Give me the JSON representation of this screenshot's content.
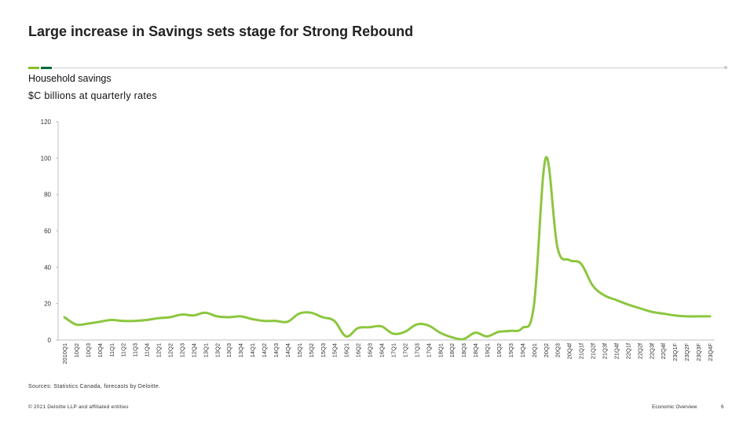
{
  "slide": {
    "title": "Large increase in Savings sets stage for Strong Rebound",
    "subtitle": "Household savings",
    "units": "$C billions at quarterly rates",
    "sources": "Sources: Statistics Canada, forecasts by Deloitte.",
    "copyright": "© 2021 Deloitte LLP and affiliated entities",
    "footer_right": "Economic Overview",
    "page_number": "6"
  },
  "colors": {
    "line": "#8cc63f",
    "accent_green": "#86bc25",
    "accent_dark_green": "#046a38",
    "axis": "#bfbfbf"
  },
  "chart_data": {
    "type": "line",
    "title": "Household savings",
    "ylabel": "$C billions at quarterly rates",
    "ylim": [
      0,
      120
    ],
    "yticks": [
      0,
      20,
      40,
      60,
      80,
      100,
      120
    ],
    "grid": false,
    "categories": [
      "2010Q1",
      "10Q2",
      "10Q3",
      "10Q4",
      "11Q1",
      "11Q2",
      "11Q3",
      "11Q4",
      "12Q1",
      "12Q2",
      "12Q3",
      "12Q4",
      "13Q1",
      "13Q2",
      "13Q3",
      "13Q4",
      "14Q1",
      "14Q2",
      "14Q3",
      "14Q4",
      "15Q1",
      "15Q2",
      "15Q3",
      "15Q4",
      "16Q1",
      "16Q2",
      "16Q3",
      "16Q4",
      "17Q1",
      "17Q2",
      "17Q3",
      "17Q4",
      "18Q1",
      "18Q2",
      "18Q3",
      "18Q4",
      "19Q1",
      "19Q2",
      "19Q3",
      "19Q4",
      "20Q1",
      "20Q2",
      "20Q3",
      "20Q4f",
      "21Q1f",
      "21Q2f",
      "21Q3f",
      "21Q4f",
      "22Q1f",
      "22Q2f",
      "22Q3f",
      "22Q4f",
      "23Q1F",
      "23Q2F",
      "23Q3F",
      "23Q4F"
    ],
    "series": [
      {
        "values": [
          12.5,
          8.5,
          9,
          10,
          11,
          10.5,
          10.5,
          11,
          12,
          12.5,
          14,
          13.5,
          15,
          13,
          12.5,
          13,
          11.5,
          10.5,
          10.5,
          10,
          14.5,
          15,
          12.5,
          10.5,
          2,
          6.5,
          7,
          7.5,
          3.5,
          4.5,
          8.5,
          8,
          4,
          1.5,
          0.5,
          4,
          2,
          4.5,
          5,
          6.5,
          19,
          100,
          51,
          44,
          42,
          30,
          24.5,
          22,
          19.5,
          17.5,
          15.5,
          14.5,
          13.5,
          13,
          13,
          13
        ]
      }
    ]
  }
}
